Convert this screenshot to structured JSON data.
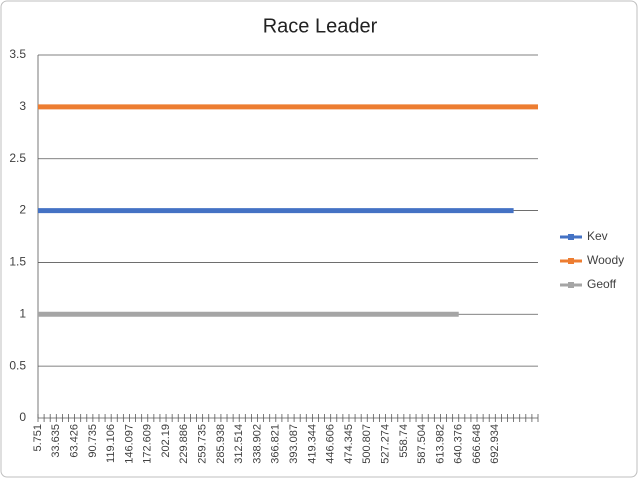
{
  "chart_data": {
    "type": "line",
    "title": "Race Leader",
    "categories": [
      "5.751",
      null,
      null,
      "33.635",
      null,
      null,
      "63.426",
      null,
      null,
      "90.735",
      null,
      null,
      "119.106",
      null,
      null,
      "146.097",
      null,
      null,
      "172.609",
      null,
      null,
      "202.19",
      null,
      null,
      "229.886",
      null,
      null,
      "259.735",
      null,
      null,
      "285.938",
      null,
      null,
      "312.514",
      null,
      null,
      "338.902",
      null,
      null,
      "366.821",
      null,
      null,
      "393.087",
      null,
      null,
      "419.344",
      null,
      null,
      "446.606",
      null,
      null,
      "474.345",
      null,
      null,
      "500.807",
      null,
      null,
      "527.274",
      null,
      null,
      "558.74",
      null,
      null,
      "587.504",
      null,
      null,
      "613.982",
      null,
      null,
      "640.376",
      null,
      null,
      "666.648",
      null,
      null,
      "692.934",
      null,
      null,
      null,
      null,
      null,
      null,
      null
    ],
    "series": [
      {
        "name": "Kev",
        "color": "#4472c4",
        "values": [
          2,
          2,
          2,
          2,
          2,
          2,
          2,
          2,
          2,
          2,
          2,
          2,
          2,
          2,
          2,
          2,
          2,
          2,
          2,
          2,
          2,
          2,
          2,
          2,
          2,
          2,
          2,
          2,
          2,
          2,
          2,
          2,
          2,
          2,
          2,
          2,
          2,
          2,
          2,
          2,
          2,
          2,
          2,
          2,
          2,
          2,
          2,
          2,
          2,
          2,
          2,
          2,
          2,
          2,
          2,
          2,
          2,
          2,
          2,
          2,
          2,
          2,
          2,
          2,
          2,
          2,
          2,
          2,
          2,
          2,
          2,
          2,
          2,
          2,
          2,
          2,
          2,
          2,
          2,
          null,
          null,
          null,
          null
        ]
      },
      {
        "name": "Woody",
        "color": "#ed7d31",
        "values": [
          3,
          3,
          3,
          3,
          3,
          3,
          3,
          3,
          3,
          3,
          3,
          3,
          3,
          3,
          3,
          3,
          3,
          3,
          3,
          3,
          3,
          3,
          3,
          3,
          3,
          3,
          3,
          3,
          3,
          3,
          3,
          3,
          3,
          3,
          3,
          3,
          3,
          3,
          3,
          3,
          3,
          3,
          3,
          3,
          3,
          3,
          3,
          3,
          3,
          3,
          3,
          3,
          3,
          3,
          3,
          3,
          3,
          3,
          3,
          3,
          3,
          3,
          3,
          3,
          3,
          3,
          3,
          3,
          3,
          3,
          3,
          3,
          3,
          3,
          3,
          3,
          3,
          3,
          3,
          3,
          3,
          3,
          3
        ]
      },
      {
        "name": "Geoff",
        "color": "#a5a5a5",
        "values": [
          1,
          1,
          1,
          1,
          1,
          1,
          1,
          1,
          1,
          1,
          1,
          1,
          1,
          1,
          1,
          1,
          1,
          1,
          1,
          1,
          1,
          1,
          1,
          1,
          1,
          1,
          1,
          1,
          1,
          1,
          1,
          1,
          1,
          1,
          1,
          1,
          1,
          1,
          1,
          1,
          1,
          1,
          1,
          1,
          1,
          1,
          1,
          1,
          1,
          1,
          1,
          1,
          1,
          1,
          1,
          1,
          1,
          1,
          1,
          1,
          1,
          1,
          1,
          1,
          1,
          1,
          1,
          1,
          1,
          1,
          null,
          null,
          null,
          null,
          null,
          null,
          null,
          null,
          null,
          null,
          null,
          null,
          null
        ]
      }
    ],
    "ylim": [
      0,
      3.5
    ],
    "yticks": [
      0,
      0.5,
      1,
      1.5,
      2,
      2.5,
      3,
      3.5
    ],
    "grid": true,
    "legend": "right"
  }
}
